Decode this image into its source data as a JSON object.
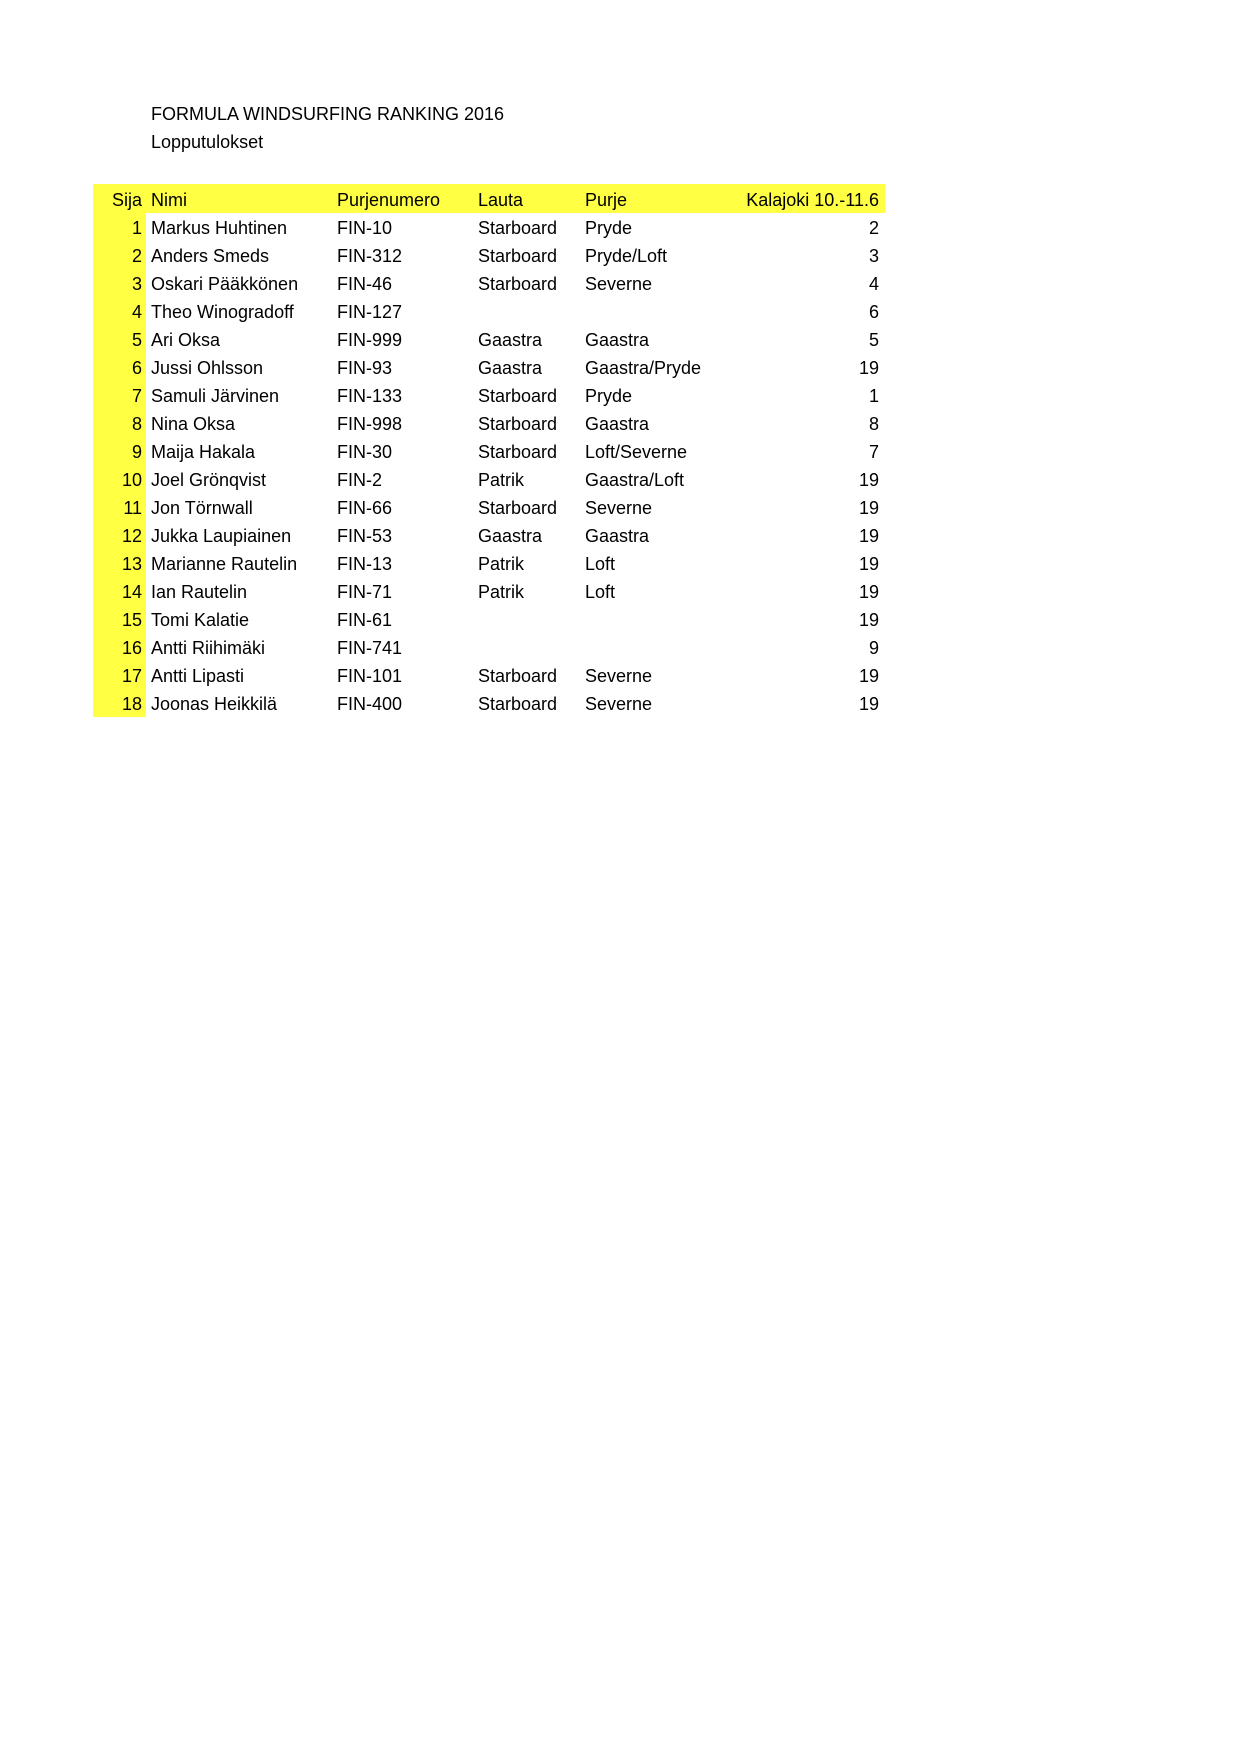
{
  "title": "FORMULA WINDSURFING RANKING 2016",
  "subtitle": "Lopputulokset",
  "highlight_color": "#ffff44",
  "headers": {
    "sija": "Sija",
    "nimi": "Nimi",
    "purjenumero": "Purjenumero",
    "lauta": "Lauta",
    "purje": "Purje",
    "kalajoki": "Kalajoki 10.-11.6"
  },
  "rows": [
    {
      "sija": "1",
      "nimi": "Markus Huhtinen",
      "purjenumero": "FIN-10",
      "lauta": "Starboard",
      "purje": "Pryde",
      "kalajoki": "2"
    },
    {
      "sija": "2",
      "nimi": "Anders Smeds",
      "purjenumero": "FIN-312",
      "lauta": "Starboard",
      "purje": "Pryde/Loft",
      "kalajoki": "3"
    },
    {
      "sija": "3",
      "nimi": "Oskari Pääkkönen",
      "purjenumero": "FIN-46",
      "lauta": "Starboard",
      "purje": "Severne",
      "kalajoki": "4"
    },
    {
      "sija": "4",
      "nimi": "Theo Winogradoff",
      "purjenumero": "FIN-127",
      "lauta": "",
      "purje": "",
      "kalajoki": "6"
    },
    {
      "sija": "5",
      "nimi": "Ari Oksa",
      "purjenumero": "FIN-999",
      "lauta": "Gaastra",
      "purje": "Gaastra",
      "kalajoki": "5"
    },
    {
      "sija": "6",
      "nimi": "Jussi Ohlsson",
      "purjenumero": "FIN-93",
      "lauta": "Gaastra",
      "purje": "Gaastra/Pryde",
      "kalajoki": "19"
    },
    {
      "sija": "7",
      "nimi": "Samuli Järvinen",
      "purjenumero": "FIN-133",
      "lauta": "Starboard",
      "purje": "Pryde",
      "kalajoki": "1"
    },
    {
      "sija": "8",
      "nimi": "Nina Oksa",
      "purjenumero": "FIN-998",
      "lauta": "Starboard",
      "purje": "Gaastra",
      "kalajoki": "8"
    },
    {
      "sija": "9",
      "nimi": "Maija Hakala",
      "purjenumero": "FIN-30",
      "lauta": "Starboard",
      "purje": "Loft/Severne",
      "kalajoki": "7"
    },
    {
      "sija": "10",
      "nimi": "Joel Grönqvist",
      "purjenumero": "FIN-2",
      "lauta": "Patrik",
      "purje": "Gaastra/Loft",
      "kalajoki": "19"
    },
    {
      "sija": "11",
      "nimi": "Jon Törnwall",
      "purjenumero": "FIN-66",
      "lauta": "Starboard",
      "purje": "Severne",
      "kalajoki": "19"
    },
    {
      "sija": "12",
      "nimi": "Jukka Laupiainen",
      "purjenumero": "FIN-53",
      "lauta": "Gaastra",
      "purje": "Gaastra",
      "kalajoki": "19"
    },
    {
      "sija": "13",
      "nimi": "Marianne Rautelin",
      "purjenumero": "FIN-13",
      "lauta": "Patrik",
      "purje": "Loft",
      "kalajoki": "19"
    },
    {
      "sija": "14",
      "nimi": "Ian Rautelin",
      "purjenumero": "FIN-71",
      "lauta": "Patrik",
      "purje": "Loft",
      "kalajoki": "19"
    },
    {
      "sija": "15",
      "nimi": "Tomi Kalatie",
      "purjenumero": "FIN-61",
      "lauta": "",
      "purje": "",
      "kalajoki": "19"
    },
    {
      "sija": "16",
      "nimi": "Antti Riihimäki",
      "purjenumero": "FIN-741",
      "lauta": "",
      "purje": "",
      "kalajoki": "9"
    },
    {
      "sija": "17",
      "nimi": "Antti Lipasti",
      "purjenumero": "FIN-101",
      "lauta": "Starboard",
      "purje": "Severne",
      "kalajoki": "19"
    },
    {
      "sija": "18",
      "nimi": "Joonas Heikkilä",
      "purjenumero": "FIN-400",
      "lauta": "Starboard",
      "purje": "Severne",
      "kalajoki": "19"
    }
  ]
}
